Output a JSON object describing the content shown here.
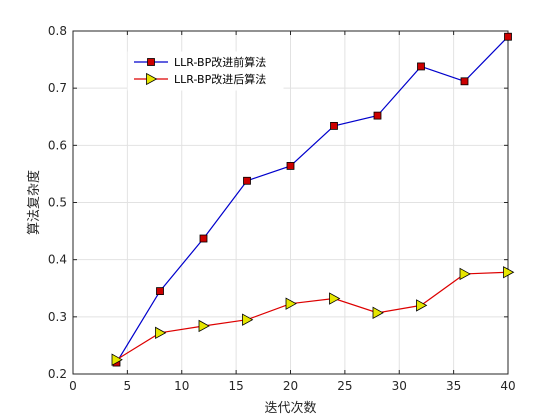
{
  "chart_data": {
    "type": "line",
    "xlabel": "迭代次数",
    "ylabel": "算法复杂度",
    "xlim": [
      0,
      40
    ],
    "ylim": [
      0.2,
      0.8
    ],
    "xticks": [
      0,
      5,
      10,
      15,
      20,
      25,
      30,
      35,
      40
    ],
    "yticks": [
      0.2,
      0.3,
      0.4,
      0.5,
      0.6,
      0.7,
      0.8
    ],
    "xtick_labels": [
      "0",
      "5",
      "10",
      "15",
      "20",
      "25",
      "30",
      "35",
      "40"
    ],
    "ytick_labels": [
      "0.2",
      "0.3",
      "0.4",
      "0.5",
      "0.6",
      "0.7",
      "0.8"
    ],
    "grid": true,
    "legend_position": "top-left",
    "series": [
      {
        "name": "LLR-BP改进前算法",
        "color": "#0000cc",
        "marker": "square",
        "marker_fill": "#cc0000",
        "x": [
          4,
          8,
          12,
          16,
          20,
          24,
          28,
          32,
          36,
          40
        ],
        "values": [
          0.22,
          0.345,
          0.437,
          0.538,
          0.564,
          0.634,
          0.652,
          0.738,
          0.712,
          0.79
        ]
      },
      {
        "name": "LLR-BP改进后算法",
        "color": "#dd0000",
        "marker": "triangle-right",
        "marker_fill": "#e6e600",
        "x": [
          4,
          8,
          12,
          16,
          20,
          24,
          28,
          32,
          36,
          40
        ],
        "values": [
          0.225,
          0.272,
          0.284,
          0.295,
          0.323,
          0.332,
          0.307,
          0.32,
          0.375,
          0.378
        ]
      }
    ]
  }
}
